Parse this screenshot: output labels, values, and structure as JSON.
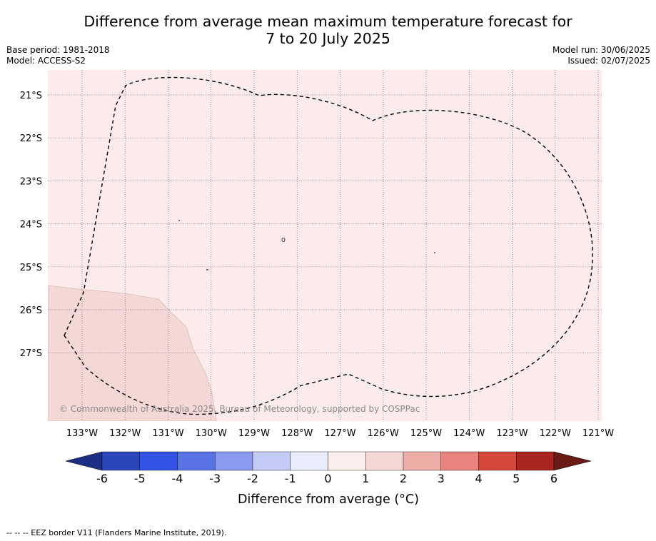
{
  "title": {
    "line1": "Difference from average mean maximum temperature forecast for",
    "line2": "7 to 20 July 2025"
  },
  "meta_left": {
    "base_period": "Base period: 1981-2018",
    "model": "Model: ACCESS-S2"
  },
  "meta_right": {
    "model_run": "Model run: 30/06/2025",
    "issued": "Issued: 02/07/2025"
  },
  "map": {
    "lat_labels": [
      "21°S",
      "22°S",
      "23°S",
      "24°S",
      "25°S",
      "26°S",
      "27°S"
    ],
    "lon_labels": [
      "133°W",
      "132°W",
      "131°W",
      "130°W",
      "129°W",
      "128°W",
      "127°W",
      "126°W",
      "125°W",
      "124°W",
      "123°W",
      "122°W",
      "121°W"
    ],
    "copyright": "© Commonwealth of Australia 2025, Bureau of Meteorology, supported by COSPPac",
    "fill_colors": {
      "zero_to_one": "#fbeceb",
      "one_to_two": "#f4d8d5"
    },
    "eez_line_color": "#000000"
  },
  "colorbar": {
    "ticks": [
      "-6",
      "-5",
      "-4",
      "-3",
      "-2",
      "-1",
      "0",
      "1",
      "2",
      "3",
      "4",
      "5",
      "6"
    ],
    "colors": [
      "#1c2f84",
      "#2b46b8",
      "#3353e4",
      "#5a73e4",
      "#8a9bee",
      "#c3cbf6",
      "#e9ecfb",
      "#fceeec",
      "#f5d8d5",
      "#edaea7",
      "#e8847d",
      "#d8473b",
      "#a9261f",
      "#6b1b16"
    ],
    "label": "Difference from average (°C)"
  },
  "footnote": "-- -- -- EEZ border V11 (Flanders Marine Institute, 2019)."
}
